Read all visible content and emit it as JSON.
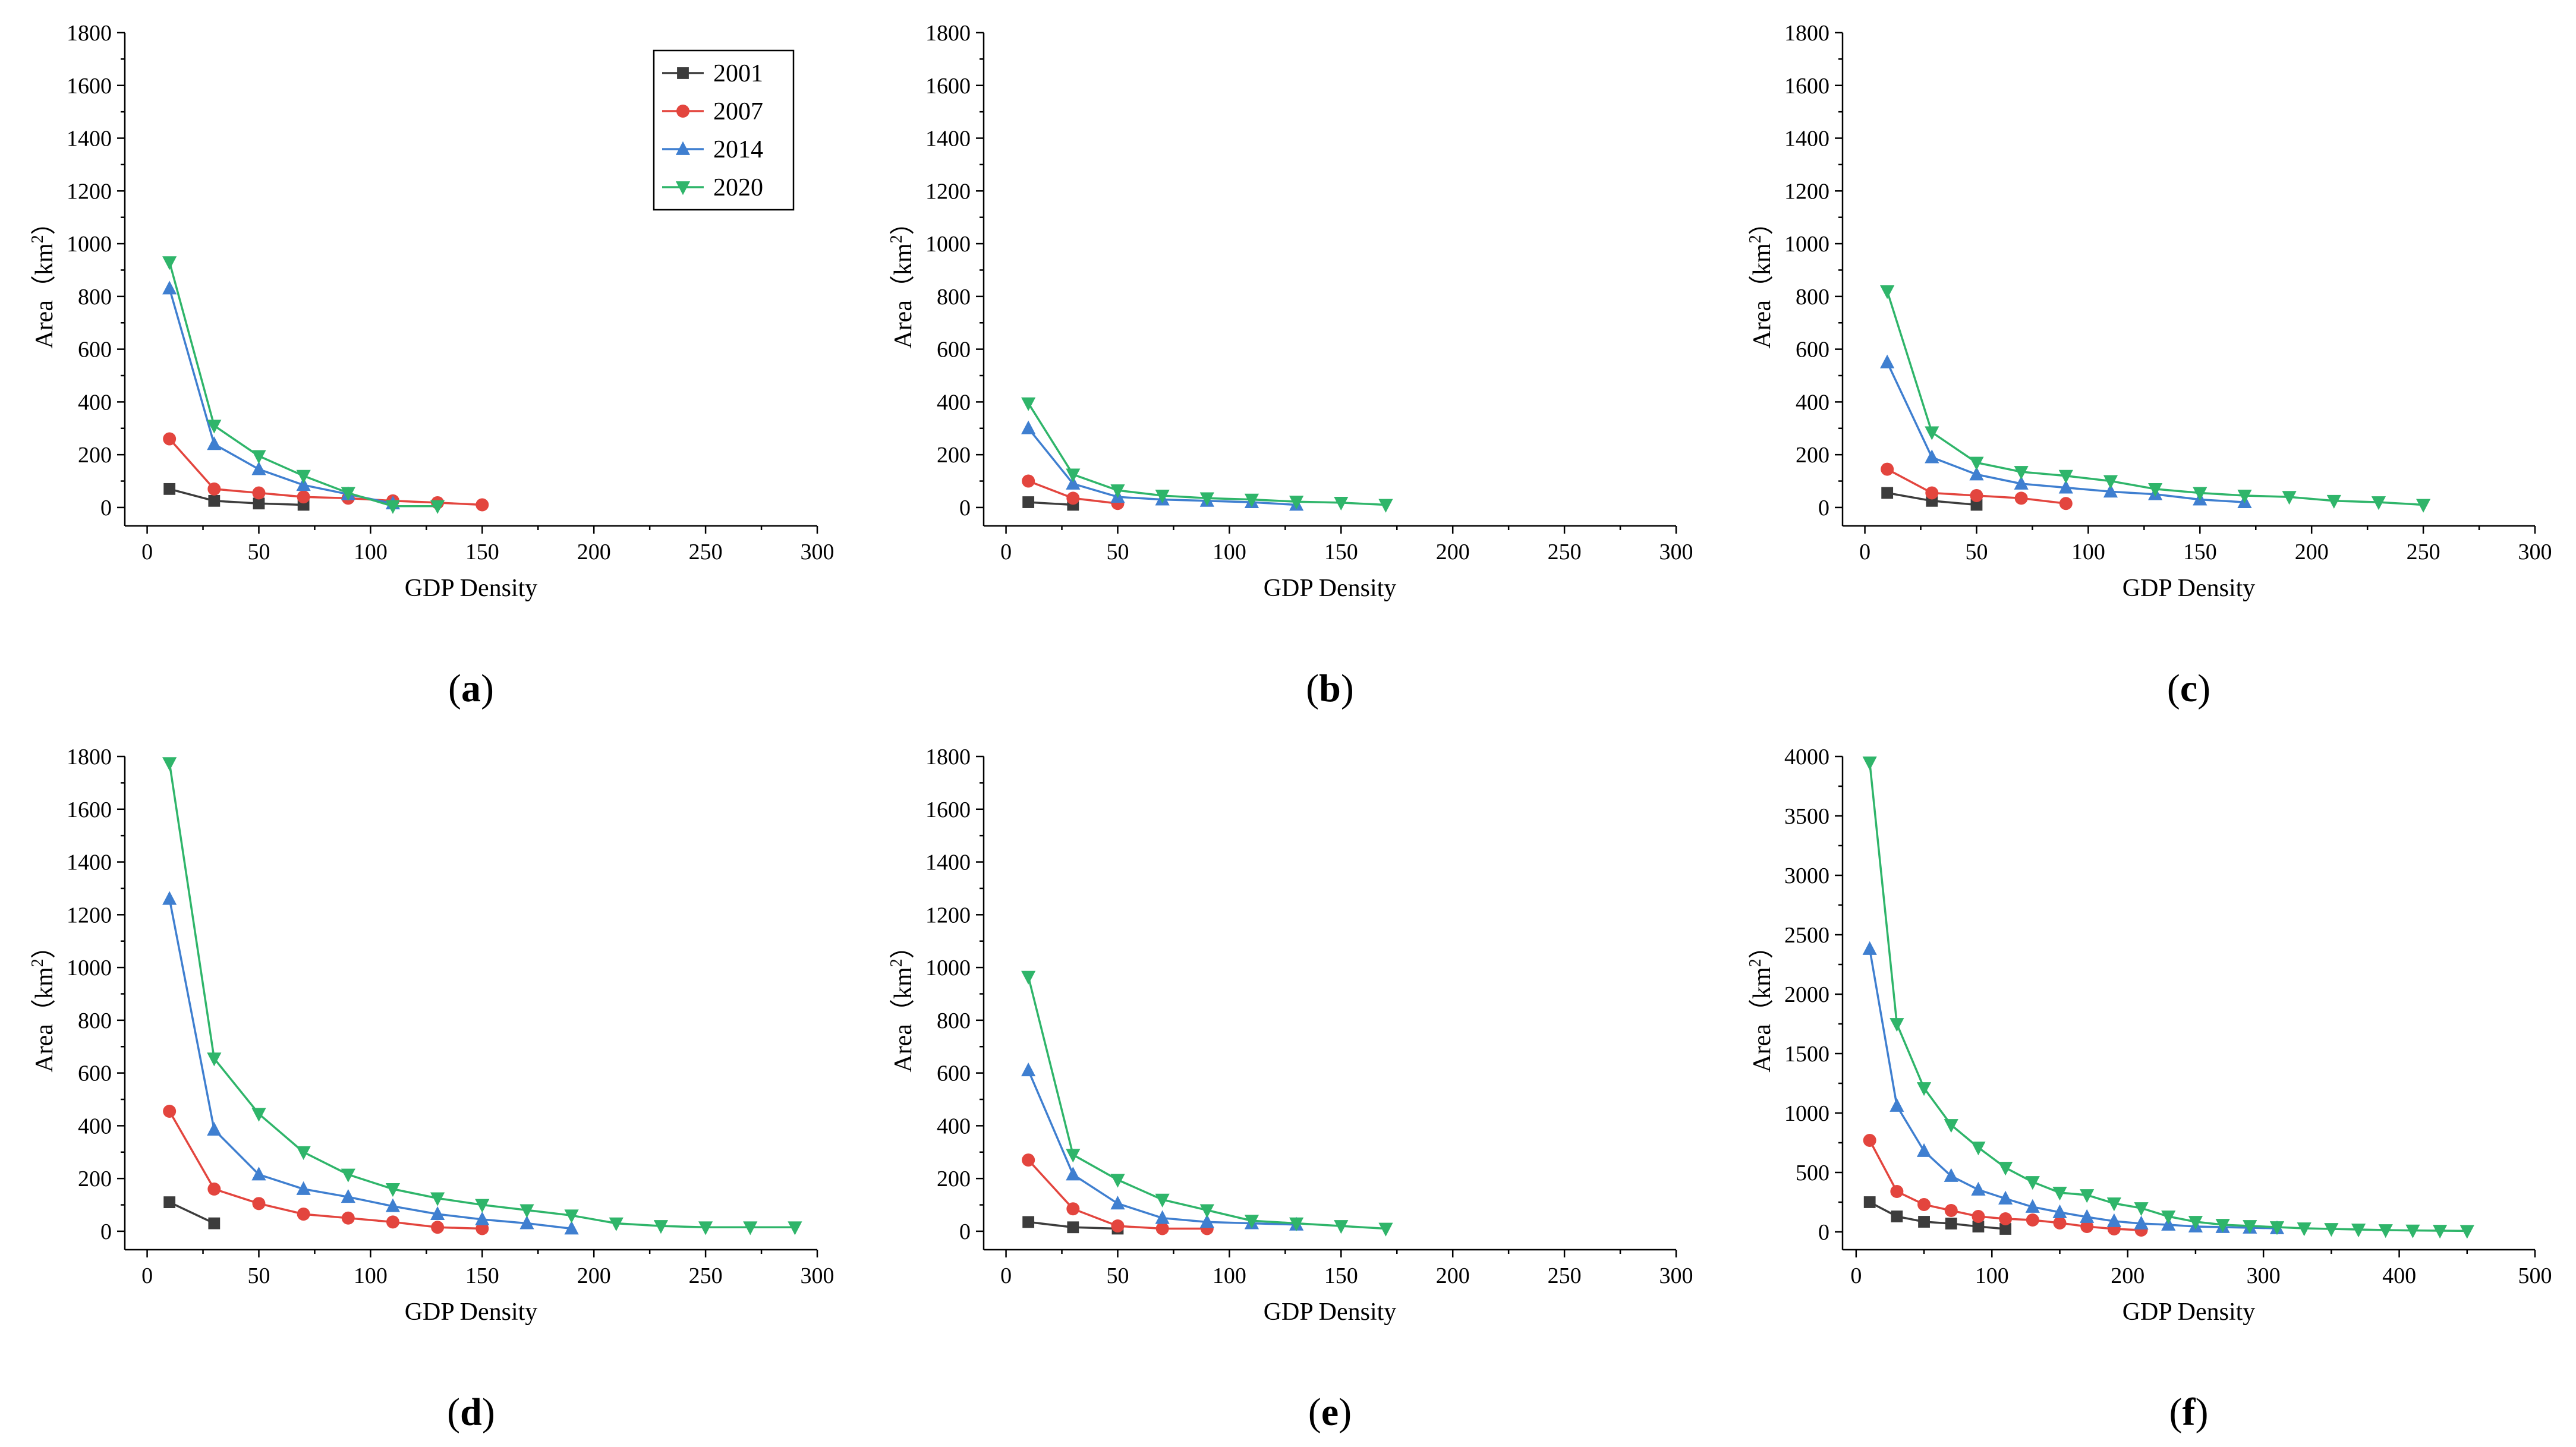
{
  "figure": {
    "legend_series": [
      "2001",
      "2007",
      "2014",
      "2020"
    ]
  },
  "series_style": {
    "2001": {
      "color": "#3c3c3c",
      "marker": "square"
    },
    "2007": {
      "color": "#e3453e",
      "marker": "circle"
    },
    "2014": {
      "color": "#3f7fd0",
      "marker": "triangle-up"
    },
    "2020": {
      "color": "#2fb56a",
      "marker": "triangle-down"
    }
  },
  "chart_data": [
    {
      "id": "a",
      "label": "a",
      "type": "line",
      "xlabel": "GDP Density",
      "ylabel_prefix": "Area（km",
      "ylabel_sup": "2",
      "ylabel_suffix": "）",
      "xlim": [
        -10,
        300
      ],
      "ylim": [
        -70,
        1800
      ],
      "xticks": [
        0,
        50,
        100,
        150,
        200,
        250,
        300
      ],
      "yticks": [
        0,
        200,
        400,
        600,
        800,
        1000,
        1200,
        1400,
        1600,
        1800
      ],
      "legend": true,
      "series": [
        {
          "name": "2001",
          "x": [
            10,
            30,
            50,
            70
          ],
          "y": [
            70,
            25,
            15,
            10
          ]
        },
        {
          "name": "2007",
          "x": [
            10,
            30,
            50,
            70,
            90,
            110,
            130,
            150
          ],
          "y": [
            260,
            70,
            55,
            40,
            35,
            25,
            18,
            10
          ]
        },
        {
          "name": "2014",
          "x": [
            10,
            30,
            50,
            70,
            90,
            110
          ],
          "y": [
            830,
            240,
            145,
            85,
            50,
            15
          ]
        },
        {
          "name": "2020",
          "x": [
            10,
            30,
            50,
            70,
            90,
            110,
            130
          ],
          "y": [
            930,
            310,
            195,
            120,
            55,
            5,
            5
          ]
        }
      ]
    },
    {
      "id": "b",
      "label": "b",
      "type": "line",
      "xlabel": "GDP Density",
      "ylabel_prefix": "Area（km",
      "ylabel_sup": "2",
      "ylabel_suffix": "）",
      "xlim": [
        -10,
        300
      ],
      "ylim": [
        -70,
        1800
      ],
      "xticks": [
        0,
        50,
        100,
        150,
        200,
        250,
        300
      ],
      "yticks": [
        0,
        200,
        400,
        600,
        800,
        1000,
        1200,
        1400,
        1600,
        1800
      ],
      "legend": false,
      "series": [
        {
          "name": "2001",
          "x": [
            10,
            30
          ],
          "y": [
            20,
            10
          ]
        },
        {
          "name": "2007",
          "x": [
            10,
            30,
            50
          ],
          "y": [
            100,
            35,
            15
          ]
        },
        {
          "name": "2014",
          "x": [
            10,
            30,
            50,
            70,
            90,
            110,
            130
          ],
          "y": [
            300,
            90,
            40,
            30,
            25,
            20,
            10
          ]
        },
        {
          "name": "2020",
          "x": [
            10,
            30,
            50,
            70,
            90,
            110,
            130,
            150,
            170
          ],
          "y": [
            395,
            125,
            65,
            45,
            35,
            30,
            22,
            18,
            10
          ]
        }
      ]
    },
    {
      "id": "c",
      "label": "c",
      "type": "line",
      "xlabel": "GDP Density",
      "ylabel_prefix": "Area（km",
      "ylabel_sup": "2",
      "ylabel_suffix": "）",
      "xlim": [
        -10,
        300
      ],
      "ylim": [
        -70,
        1800
      ],
      "xticks": [
        0,
        50,
        100,
        150,
        200,
        250,
        300
      ],
      "yticks": [
        0,
        200,
        400,
        600,
        800,
        1000,
        1200,
        1400,
        1600,
        1800
      ],
      "legend": false,
      "series": [
        {
          "name": "2001",
          "x": [
            10,
            30,
            50
          ],
          "y": [
            55,
            25,
            10
          ]
        },
        {
          "name": "2007",
          "x": [
            10,
            30,
            50,
            70,
            90
          ],
          "y": [
            145,
            55,
            45,
            35,
            15
          ]
        },
        {
          "name": "2014",
          "x": [
            10,
            30,
            50,
            70,
            90,
            110,
            130,
            150,
            170
          ],
          "y": [
            550,
            190,
            125,
            90,
            75,
            60,
            50,
            30,
            20
          ]
        },
        {
          "name": "2020",
          "x": [
            10,
            30,
            50,
            70,
            90,
            110,
            130,
            150,
            170,
            190,
            210,
            230,
            250
          ],
          "y": [
            820,
            285,
            170,
            135,
            120,
            100,
            70,
            55,
            45,
            40,
            25,
            20,
            10
          ]
        }
      ]
    },
    {
      "id": "d",
      "label": "d",
      "type": "line",
      "xlabel": "GDP Density",
      "ylabel_prefix": "Area（km",
      "ylabel_sup": "2",
      "ylabel_suffix": "）",
      "xlim": [
        -10,
        300
      ],
      "ylim": [
        -70,
        1800
      ],
      "xticks": [
        0,
        50,
        100,
        150,
        200,
        250,
        300
      ],
      "yticks": [
        0,
        200,
        400,
        600,
        800,
        1000,
        1200,
        1400,
        1600,
        1800
      ],
      "legend": false,
      "series": [
        {
          "name": "2001",
          "x": [
            10,
            30
          ],
          "y": [
            110,
            30
          ]
        },
        {
          "name": "2007",
          "x": [
            10,
            30,
            50,
            70,
            90,
            110,
            130,
            150
          ],
          "y": [
            455,
            160,
            105,
            65,
            50,
            35,
            15,
            10
          ]
        },
        {
          "name": "2014",
          "x": [
            10,
            30,
            50,
            70,
            90,
            110,
            130,
            150,
            170,
            190
          ],
          "y": [
            1260,
            385,
            215,
            160,
            130,
            95,
            65,
            45,
            30,
            10
          ]
        },
        {
          "name": "2020",
          "x": [
            10,
            30,
            50,
            70,
            90,
            110,
            130,
            150,
            170,
            190,
            210,
            230,
            250,
            270,
            290
          ],
          "y": [
            1775,
            655,
            445,
            300,
            215,
            160,
            125,
            100,
            80,
            60,
            30,
            20,
            15,
            15,
            15
          ]
        }
      ]
    },
    {
      "id": "e",
      "label": "e",
      "type": "line",
      "xlabel": "GDP Density",
      "ylabel_prefix": "Area（km",
      "ylabel_sup": "2",
      "ylabel_suffix": "）",
      "xlim": [
        -10,
        300
      ],
      "ylim": [
        -70,
        1800
      ],
      "xticks": [
        0,
        50,
        100,
        150,
        200,
        250,
        300
      ],
      "yticks": [
        0,
        200,
        400,
        600,
        800,
        1000,
        1200,
        1400,
        1600,
        1800
      ],
      "legend": false,
      "series": [
        {
          "name": "2001",
          "x": [
            10,
            30,
            50
          ],
          "y": [
            35,
            15,
            10
          ]
        },
        {
          "name": "2007",
          "x": [
            10,
            30,
            50,
            70,
            90
          ],
          "y": [
            270,
            85,
            20,
            10,
            10
          ]
        },
        {
          "name": "2014",
          "x": [
            10,
            30,
            50,
            70,
            90,
            110,
            130
          ],
          "y": [
            610,
            215,
            105,
            50,
            35,
            30,
            25
          ]
        },
        {
          "name": "2020",
          "x": [
            10,
            30,
            50,
            70,
            90,
            110,
            130,
            150,
            170
          ],
          "y": [
            965,
            290,
            195,
            120,
            80,
            40,
            30,
            20,
            10
          ]
        }
      ]
    },
    {
      "id": "f",
      "label": "f",
      "type": "line",
      "xlabel": "GDP Density",
      "ylabel_prefix": "Area（km",
      "ylabel_sup": "2",
      "ylabel_suffix": "）",
      "xlim": [
        -10,
        500
      ],
      "ylim": [
        -150,
        4000
      ],
      "xticks": [
        0,
        100,
        200,
        300,
        400,
        500
      ],
      "yticks": [
        0,
        500,
        1000,
        1500,
        2000,
        2500,
        3000,
        3500,
        4000
      ],
      "legend": false,
      "series": [
        {
          "name": "2001",
          "x": [
            10,
            30,
            50,
            70,
            90,
            110
          ],
          "y": [
            250,
            130,
            85,
            70,
            45,
            25
          ]
        },
        {
          "name": "2007",
          "x": [
            10,
            30,
            50,
            70,
            90,
            110,
            130,
            150,
            170,
            190,
            210
          ],
          "y": [
            770,
            340,
            230,
            180,
            130,
            110,
            100,
            75,
            45,
            25,
            15
          ]
        },
        {
          "name": "2014",
          "x": [
            10,
            30,
            50,
            70,
            90,
            110,
            130,
            150,
            170,
            190,
            210,
            230,
            250,
            270,
            290,
            310
          ],
          "y": [
            2380,
            1060,
            680,
            470,
            355,
            280,
            210,
            165,
            125,
            90,
            70,
            60,
            45,
            40,
            35,
            30
          ]
        },
        {
          "name": "2020",
          "x": [
            10,
            30,
            50,
            70,
            90,
            110,
            130,
            150,
            170,
            190,
            210,
            230,
            250,
            270,
            290,
            310,
            330,
            350,
            370,
            390,
            410,
            430,
            450
          ],
          "y": [
            3950,
            1750,
            1210,
            900,
            710,
            540,
            420,
            330,
            310,
            240,
            200,
            130,
            85,
            60,
            50,
            40,
            30,
            25,
            20,
            15,
            12,
            10,
            8
          ]
        }
      ]
    }
  ]
}
